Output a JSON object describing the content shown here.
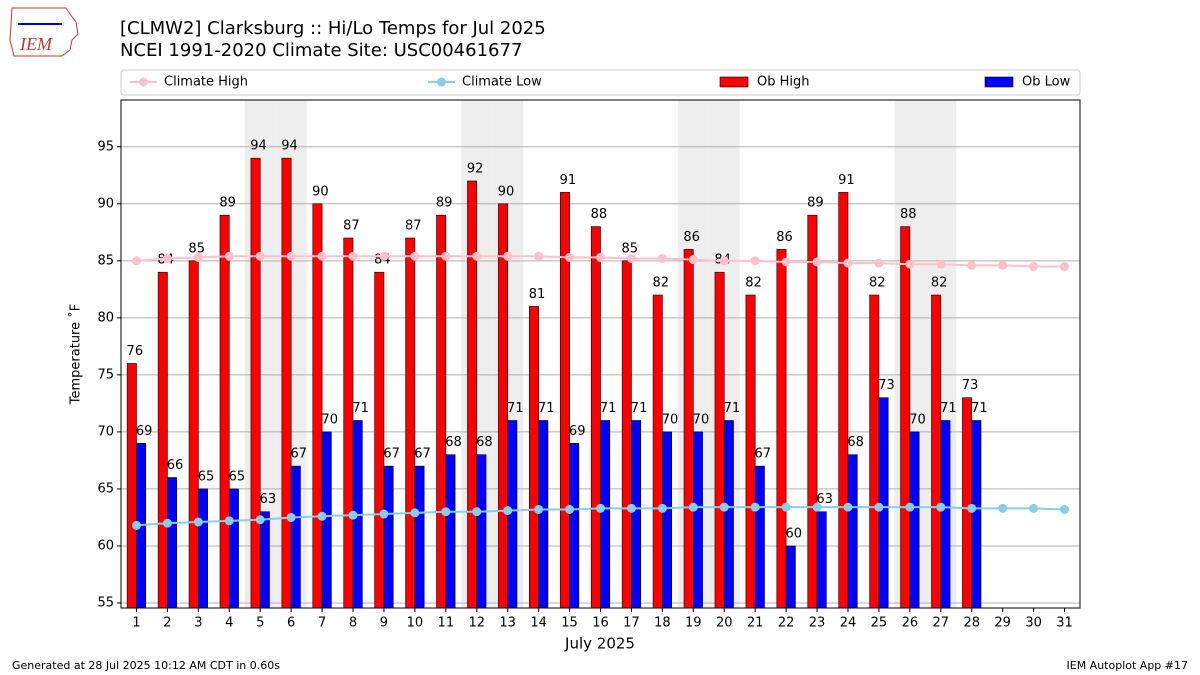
{
  "chart_data": {
    "type": "bar",
    "title": "[CLMW2] Clarksburg :: Hi/Lo Temps for Jul 2025",
    "subtitle": "NCEI 1991-2020 Climate Site: USC00461677",
    "y_label": "Temperature ˚F",
    "x_label": "July 2025",
    "footer_left": "Generated at 28 Jul 2025 10:12 AM CDT in 0.60s",
    "footer_right": "IEM Autoplot App #17",
    "logo_text": "IEM",
    "x": [
      1,
      2,
      3,
      4,
      5,
      6,
      7,
      8,
      9,
      10,
      11,
      12,
      13,
      14,
      15,
      16,
      17,
      18,
      19,
      20,
      21,
      22,
      23,
      24,
      25,
      26,
      27,
      28,
      29,
      30,
      31
    ],
    "xlim": [
      0.5,
      31.5
    ],
    "xticks": [
      1,
      2,
      3,
      4,
      5,
      6,
      7,
      8,
      9,
      10,
      11,
      12,
      13,
      14,
      15,
      16,
      17,
      18,
      19,
      20,
      21,
      22,
      23,
      24,
      25,
      26,
      27,
      28,
      29,
      30,
      31
    ],
    "ylim": [
      54.56,
      99.1
    ],
    "yticks": [
      55,
      60,
      65,
      70,
      75,
      80,
      85,
      90,
      95
    ],
    "grid": true,
    "legend": "top",
    "weekend_days": [
      5,
      6,
      12,
      13,
      19,
      20,
      26,
      27
    ],
    "series": [
      {
        "name": "Climate High",
        "kind": "line",
        "color": "#ffc0cb",
        "values": [
          85.0,
          85.2,
          85.3,
          85.4,
          85.4,
          85.4,
          85.4,
          85.4,
          85.4,
          85.4,
          85.4,
          85.4,
          85.4,
          85.4,
          85.3,
          85.3,
          85.2,
          85.2,
          85.1,
          85.0,
          85.0,
          84.9,
          84.9,
          84.8,
          84.8,
          84.7,
          84.7,
          84.6,
          84.6,
          84.5,
          84.5
        ]
      },
      {
        "name": "Climate Low",
        "kind": "line",
        "color": "#87ceeb",
        "values": [
          61.8,
          62.0,
          62.1,
          62.2,
          62.3,
          62.5,
          62.6,
          62.7,
          62.8,
          62.9,
          63.0,
          63.0,
          63.1,
          63.2,
          63.2,
          63.3,
          63.3,
          63.3,
          63.4,
          63.4,
          63.4,
          63.4,
          63.4,
          63.4,
          63.4,
          63.4,
          63.4,
          63.3,
          63.3,
          63.3,
          63.2
        ]
      },
      {
        "name": "Ob High",
        "kind": "bar",
        "color": "#ff0000",
        "values": [
          76,
          84,
          85,
          89,
          94,
          94,
          90,
          87,
          84,
          87,
          89,
          92,
          90,
          81,
          91,
          88,
          85,
          82,
          86,
          84,
          82,
          86,
          89,
          91,
          82,
          88,
          82,
          73,
          null,
          null,
          null
        ]
      },
      {
        "name": "Ob Low",
        "kind": "bar",
        "color": "#0000ff",
        "values": [
          69,
          66,
          65,
          65,
          63,
          67,
          70,
          71,
          67,
          67,
          68,
          68,
          71,
          71,
          69,
          71,
          71,
          70,
          70,
          71,
          67,
          60,
          63,
          68,
          73,
          70,
          71,
          71,
          null,
          null,
          null
        ]
      }
    ]
  }
}
